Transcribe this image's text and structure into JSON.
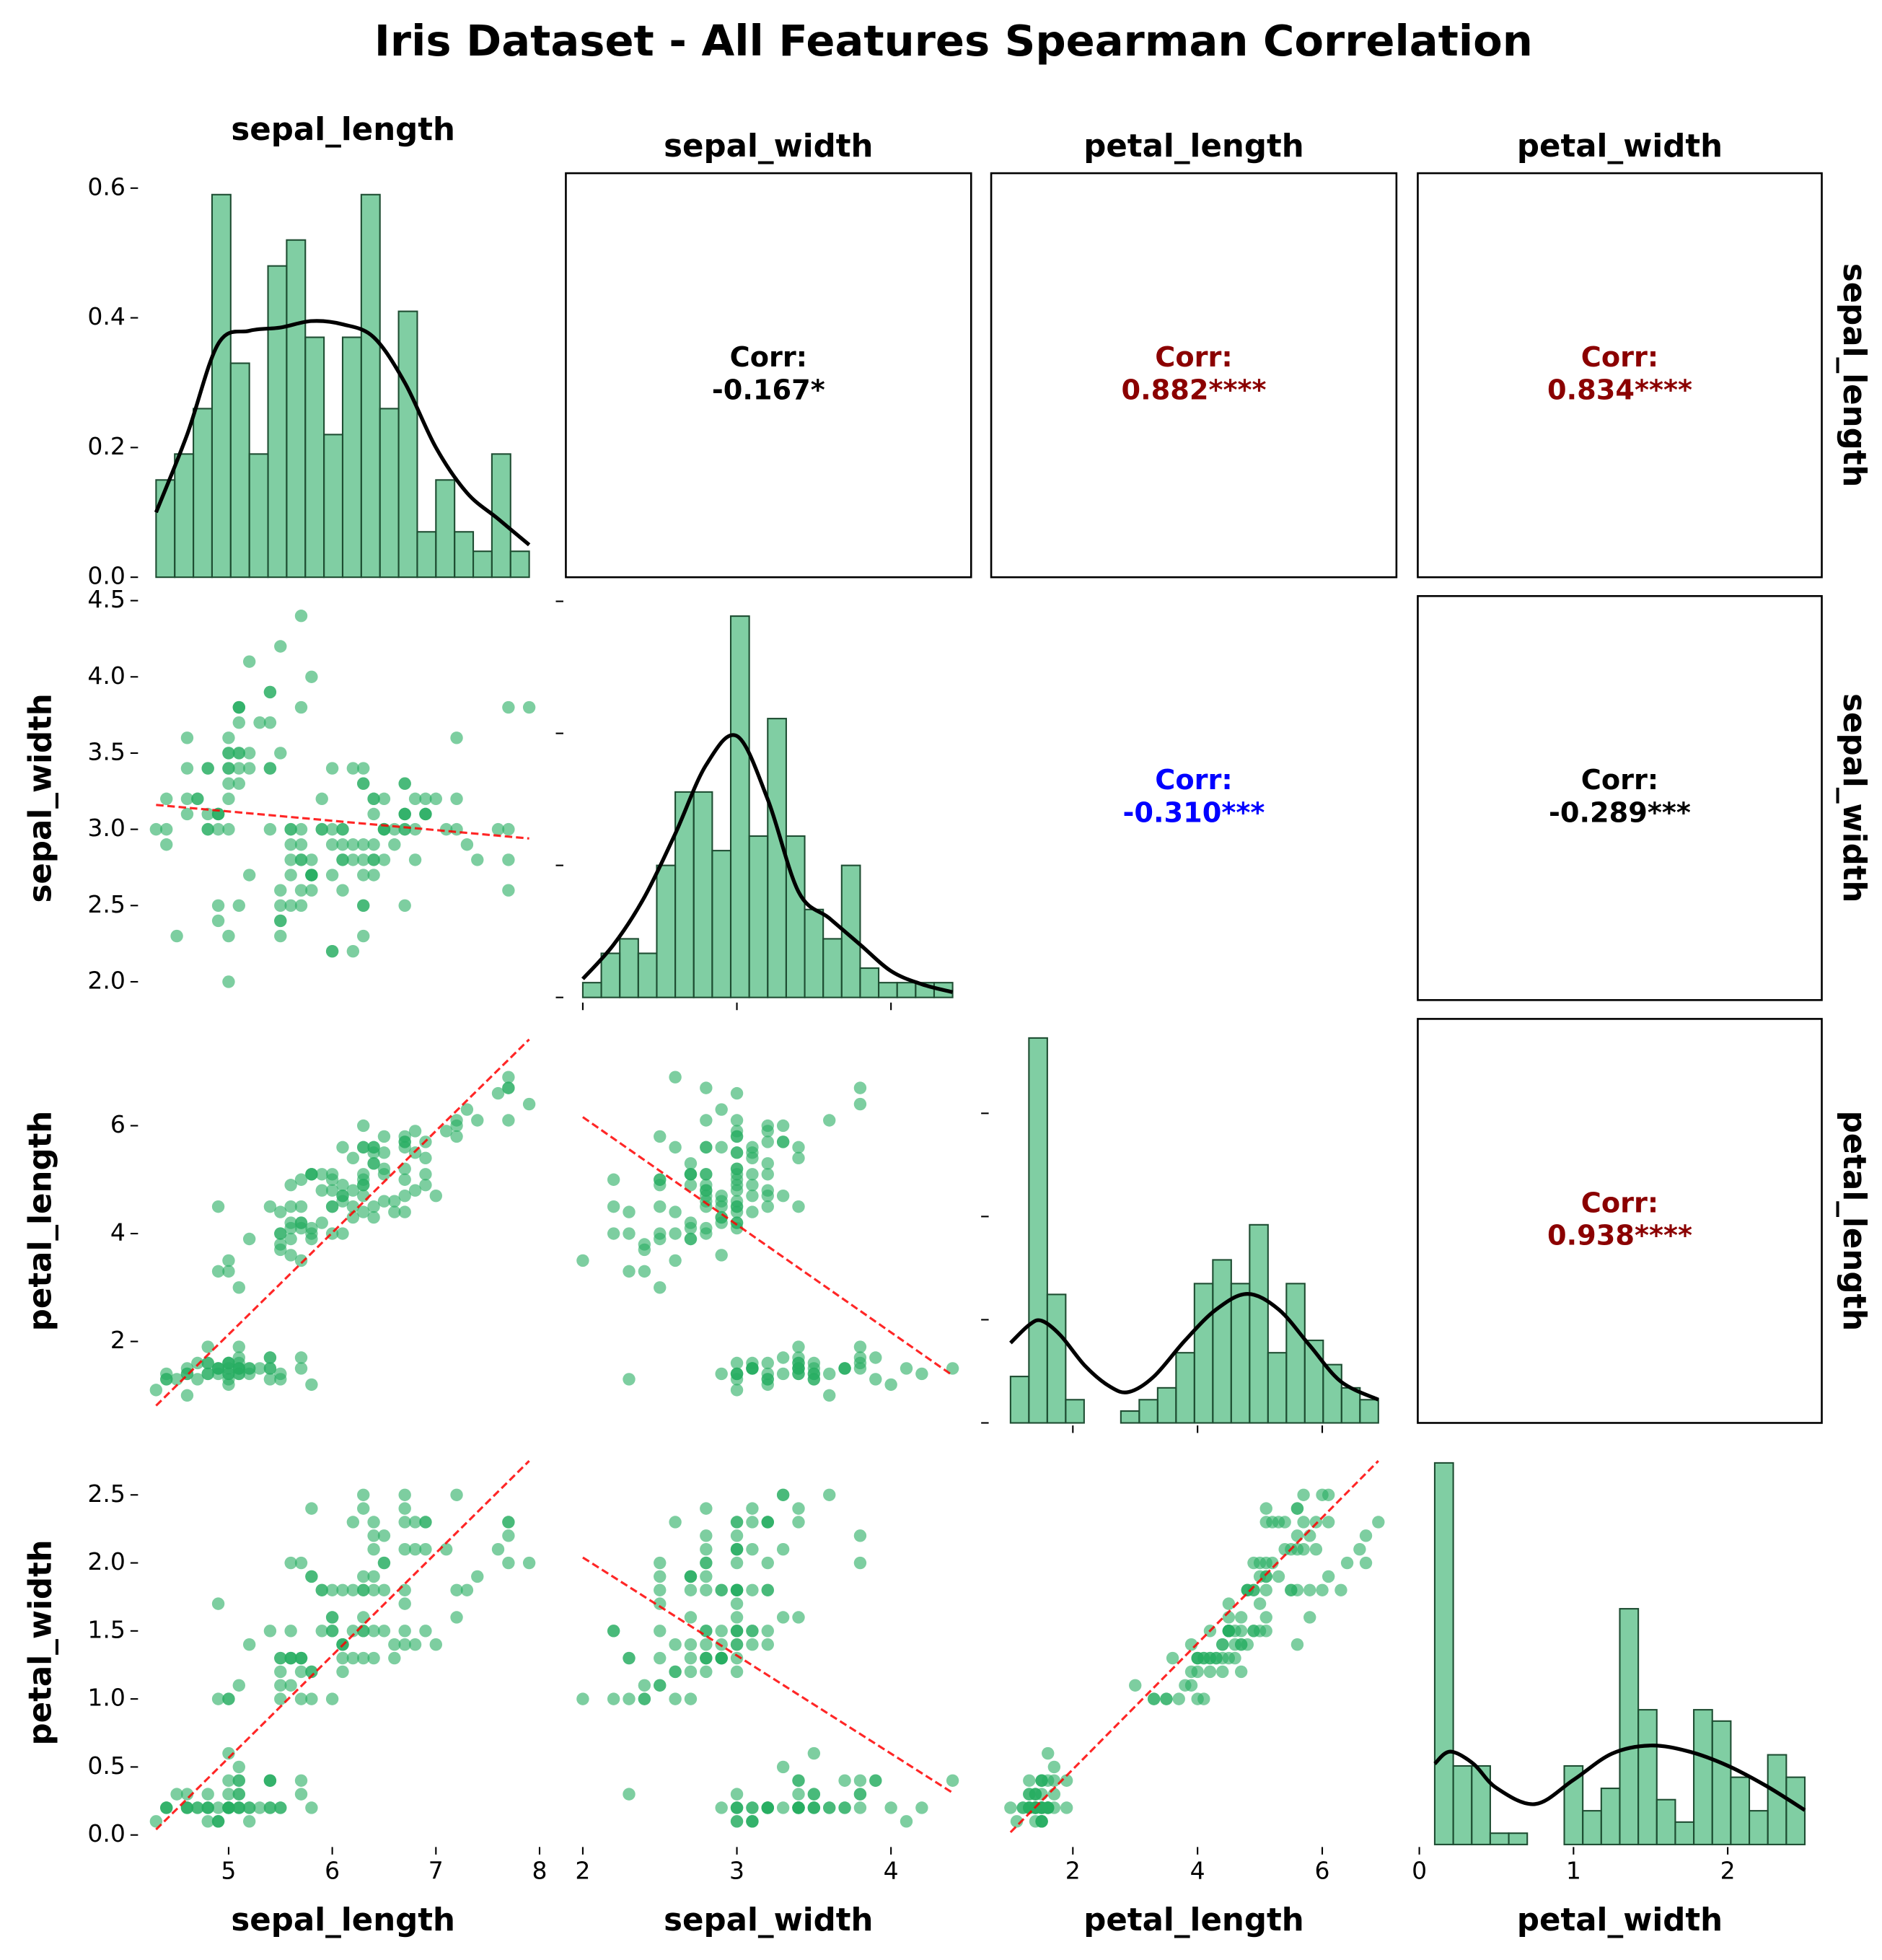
{
  "chart_data": {
    "type": "pairplot",
    "title": "Iris Dataset - All Features Spearman Correlation",
    "variables": [
      "sepal_length",
      "sepal_width",
      "petal_length",
      "petal_width"
    ],
    "columns": [
      [
        5.1,
        4.9,
        4.7,
        4.6,
        5.0,
        5.4,
        4.6,
        5.0,
        4.4,
        4.9,
        5.4,
        4.8,
        4.8,
        4.3,
        5.8,
        5.7,
        5.4,
        5.1,
        5.7,
        5.1,
        5.4,
        5.1,
        4.6,
        5.1,
        4.8,
        5.0,
        5.0,
        5.2,
        5.2,
        4.7,
        4.8,
        5.4,
        5.2,
        5.5,
        4.9,
        5.0,
        5.5,
        4.9,
        4.4,
        5.1,
        5.0,
        4.5,
        4.4,
        5.0,
        5.1,
        4.8,
        5.1,
        4.6,
        5.3,
        5.0,
        7.0,
        6.4,
        6.9,
        5.5,
        6.5,
        5.7,
        6.3,
        4.9,
        6.6,
        5.2,
        5.0,
        5.9,
        6.0,
        6.1,
        5.6,
        6.7,
        5.6,
        5.8,
        6.2,
        5.6,
        5.9,
        6.1,
        6.3,
        6.1,
        6.4,
        6.6,
        6.8,
        6.7,
        6.0,
        5.7,
        5.5,
        5.5,
        5.8,
        6.0,
        5.4,
        6.0,
        6.7,
        6.3,
        5.6,
        5.5,
        5.5,
        6.1,
        5.8,
        5.0,
        5.6,
        5.7,
        5.7,
        6.2,
        5.1,
        5.7,
        6.3,
        5.8,
        7.1,
        6.3,
        6.5,
        7.6,
        4.9,
        7.3,
        6.7,
        7.2,
        6.5,
        6.4,
        6.8,
        5.7,
        5.8,
        6.4,
        6.5,
        7.7,
        7.7,
        6.0,
        6.9,
        5.6,
        7.7,
        6.3,
        6.7,
        7.2,
        6.2,
        6.1,
        6.4,
        7.2,
        7.4,
        7.9,
        6.4,
        6.3,
        6.1,
        7.7,
        6.3,
        6.4,
        6.0,
        6.9,
        6.7,
        6.9,
        5.8,
        6.8,
        6.7,
        6.7,
        6.3,
        6.5,
        6.2,
        5.9
      ],
      [
        3.5,
        3.0,
        3.2,
        3.1,
        3.6,
        3.9,
        3.4,
        3.4,
        2.9,
        3.1,
        3.7,
        3.4,
        3.0,
        3.0,
        4.0,
        4.4,
        3.9,
        3.5,
        3.8,
        3.8,
        3.4,
        3.7,
        3.6,
        3.3,
        3.4,
        3.0,
        3.4,
        3.5,
        3.4,
        3.2,
        3.1,
        3.4,
        4.1,
        4.2,
        3.1,
        3.2,
        3.5,
        3.1,
        3.0,
        3.4,
        3.5,
        2.3,
        3.2,
        3.5,
        3.8,
        3.0,
        3.8,
        3.2,
        3.7,
        3.3,
        3.2,
        3.2,
        3.1,
        2.3,
        2.8,
        2.8,
        3.3,
        2.4,
        2.9,
        2.7,
        2.0,
        3.0,
        2.2,
        2.9,
        2.9,
        3.1,
        3.0,
        2.7,
        2.2,
        2.5,
        3.2,
        2.8,
        2.5,
        2.8,
        2.9,
        3.0,
        2.8,
        3.0,
        2.9,
        2.6,
        2.4,
        2.4,
        2.7,
        2.7,
        3.0,
        3.4,
        3.1,
        2.3,
        3.0,
        2.5,
        2.6,
        3.0,
        2.6,
        2.3,
        2.7,
        3.0,
        2.9,
        2.9,
        2.5,
        2.8,
        3.3,
        2.7,
        3.0,
        2.9,
        3.0,
        3.0,
        2.5,
        2.9,
        2.5,
        3.6,
        3.2,
        2.7,
        3.0,
        2.5,
        2.8,
        3.2,
        3.0,
        3.8,
        2.6,
        2.2,
        3.2,
        2.8,
        2.8,
        2.7,
        3.3,
        3.2,
        2.8,
        3.0,
        2.8,
        3.0,
        2.8,
        3.8,
        2.8,
        2.8,
        2.6,
        3.0,
        3.4,
        3.1,
        3.0,
        3.1,
        3.1,
        3.1,
        2.7,
        3.2,
        3.3,
        3.0,
        2.5,
        3.0,
        3.4,
        3.0
      ],
      [
        1.4,
        1.4,
        1.3,
        1.5,
        1.4,
        1.7,
        1.4,
        1.5,
        1.4,
        1.5,
        1.5,
        1.6,
        1.4,
        1.1,
        1.2,
        1.5,
        1.3,
        1.4,
        1.7,
        1.5,
        1.7,
        1.5,
        1.0,
        1.7,
        1.9,
        1.6,
        1.6,
        1.5,
        1.4,
        1.6,
        1.6,
        1.5,
        1.5,
        1.4,
        1.5,
        1.2,
        1.3,
        1.5,
        1.3,
        1.5,
        1.3,
        1.3,
        1.3,
        1.6,
        1.9,
        1.4,
        1.6,
        1.4,
        1.5,
        1.4,
        4.7,
        4.5,
        4.9,
        4.0,
        4.6,
        4.5,
        4.7,
        3.3,
        4.6,
        3.9,
        3.5,
        4.2,
        4.0,
        4.7,
        3.6,
        4.4,
        4.5,
        4.1,
        4.5,
        3.9,
        4.8,
        4.0,
        4.9,
        4.7,
        4.3,
        4.4,
        4.8,
        5.0,
        4.5,
        3.5,
        3.8,
        3.7,
        3.9,
        5.1,
        4.5,
        4.5,
        4.7,
        4.4,
        4.1,
        4.0,
        4.4,
        4.6,
        4.0,
        3.3,
        4.2,
        4.2,
        4.2,
        4.3,
        3.0,
        4.1,
        6.0,
        5.1,
        5.9,
        5.6,
        5.8,
        6.6,
        4.5,
        6.3,
        5.8,
        6.1,
        5.1,
        5.3,
        5.5,
        5.0,
        5.1,
        5.3,
        5.5,
        6.7,
        6.9,
        5.0,
        5.7,
        4.9,
        6.7,
        4.9,
        5.7,
        6.0,
        4.8,
        4.9,
        5.6,
        5.8,
        6.1,
        6.4,
        5.6,
        5.1,
        5.6,
        6.1,
        5.6,
        5.5,
        4.8,
        5.4,
        5.6,
        5.1,
        5.1,
        5.9,
        5.7,
        5.2,
        5.0,
        5.2,
        5.4,
        5.1
      ],
      [
        0.2,
        0.2,
        0.2,
        0.2,
        0.2,
        0.4,
        0.3,
        0.2,
        0.2,
        0.1,
        0.2,
        0.2,
        0.1,
        0.1,
        0.2,
        0.4,
        0.4,
        0.3,
        0.3,
        0.3,
        0.2,
        0.4,
        0.2,
        0.5,
        0.2,
        0.2,
        0.4,
        0.2,
        0.2,
        0.2,
        0.2,
        0.4,
        0.1,
        0.2,
        0.1,
        0.2,
        0.2,
        0.1,
        0.2,
        0.2,
        0.3,
        0.3,
        0.2,
        0.6,
        0.4,
        0.3,
        0.2,
        0.2,
        0.2,
        0.2,
        1.4,
        1.5,
        1.5,
        1.3,
        1.5,
        1.3,
        1.6,
        1.0,
        1.3,
        1.4,
        1.0,
        1.5,
        1.0,
        1.4,
        1.3,
        1.4,
        1.5,
        1.0,
        1.5,
        1.1,
        1.8,
        1.3,
        1.5,
        1.2,
        1.3,
        1.4,
        1.4,
        1.7,
        1.5,
        1.0,
        1.1,
        1.0,
        1.2,
        1.6,
        1.5,
        1.6,
        1.5,
        1.3,
        1.3,
        1.3,
        1.2,
        1.4,
        1.2,
        1.0,
        1.3,
        1.2,
        1.3,
        1.3,
        1.1,
        1.3,
        2.5,
        1.9,
        2.1,
        1.8,
        2.2,
        2.1,
        1.7,
        1.8,
        1.8,
        2.5,
        2.0,
        1.9,
        2.1,
        2.0,
        2.4,
        2.3,
        1.8,
        2.2,
        2.3,
        1.5,
        2.3,
        2.0,
        2.0,
        1.8,
        2.1,
        1.8,
        1.8,
        1.8,
        2.1,
        1.6,
        1.9,
        2.0,
        2.2,
        1.5,
        1.4,
        2.3,
        2.4,
        1.8,
        1.8,
        2.1,
        2.4,
        2.3,
        1.9,
        2.3,
        2.5,
        2.3,
        1.9,
        2.0,
        2.3,
        1.8
      ]
    ],
    "axes": [
      {
        "xlim": [
          4.15,
          8.06
        ],
        "xticks": [
          5,
          6,
          7,
          8
        ]
      },
      {
        "xlim": [
          1.89,
          4.52
        ],
        "xticks": [
          2,
          3,
          4
        ],
        "ylim": [
          1.88,
          4.53
        ],
        "yticks": [
          {
            "value": 2,
            "label": "2.0"
          },
          2.5,
          {
            "value": 3,
            "label": "3.0"
          },
          3.5,
          {
            "value": 4,
            "label": "4.0"
          },
          4.5
        ]
      },
      {
        "xlim": [
          0.69,
          7.19
        ],
        "xticks": [
          2,
          4,
          6
        ],
        "ylim": [
          0.49,
          7.98
        ],
        "yticks": [
          2,
          4,
          6
        ]
      },
      {
        "xlim": [
          -0.01,
          2.61
        ],
        "xticks": [
          0,
          1,
          2
        ],
        "ylim": [
          -0.07,
          2.9
        ],
        "yticks": [
          {
            "value": 0,
            "label": "0.0"
          },
          0.5,
          {
            "value": 1,
            "label": "1.0"
          },
          1.5,
          {
            "value": 2,
            "label": "2.0"
          },
          2.5
        ]
      }
    ],
    "histograms": [
      {
        "bins": [
          4.3,
          4.48,
          4.66,
          4.84,
          5.02,
          5.2,
          5.38,
          5.56,
          5.74,
          5.92,
          6.1,
          6.28,
          6.46,
          6.64,
          6.82,
          7.0,
          7.18,
          7.36,
          7.54,
          7.72,
          7.9
        ],
        "values": [
          0.15,
          0.19,
          0.26,
          0.59,
          0.33,
          0.19,
          0.48,
          0.52,
          0.37,
          0.22,
          0.37,
          0.59,
          0.26,
          0.41,
          0.07,
          0.15,
          0.07,
          0.04,
          0.19,
          0.04
        ],
        "ylim": [
          0,
          0.623
        ],
        "yticks": [
          {
            "value": 0,
            "label": "0.0"
          },
          0.2,
          0.4,
          0.6
        ],
        "kde": {
          "x": [
            4.3,
            4.6,
            4.9,
            5.2,
            5.5,
            5.8,
            6.1,
            6.4,
            6.7,
            7.0,
            7.3,
            7.6,
            7.9
          ],
          "y": [
            0.1,
            0.22,
            0.36,
            0.38,
            0.385,
            0.395,
            0.39,
            0.37,
            0.3,
            0.2,
            0.13,
            0.09,
            0.05
          ]
        }
      },
      {
        "bins": [
          2.0,
          2.12,
          2.24,
          2.36,
          2.48,
          2.6,
          2.72,
          2.84,
          2.96,
          3.08,
          3.2,
          3.32,
          3.44,
          3.56,
          3.68,
          3.8,
          3.92,
          4.04,
          4.16,
          4.28,
          4.4
        ],
        "values": [
          0.056,
          0.167,
          0.222,
          0.167,
          0.5,
          0.778,
          0.778,
          0.556,
          1.444,
          0.611,
          1.056,
          0.611,
          0.333,
          0.222,
          0.5,
          0.111,
          0.056,
          0.056,
          0.056,
          0.056
        ],
        "ylim": [
          -0.01,
          1.52
        ],
        "yticks": [
          0,
          0.5,
          1,
          1.5
        ],
        "kde": {
          "x": [
            2.0,
            2.2,
            2.4,
            2.6,
            2.8,
            3.0,
            3.2,
            3.4,
            3.6,
            3.8,
            4.0,
            4.2,
            4.4
          ],
          "y": [
            0.07,
            0.2,
            0.38,
            0.62,
            0.88,
            0.99,
            0.75,
            0.4,
            0.3,
            0.2,
            0.1,
            0.05,
            0.02
          ]
        }
      },
      {
        "bins": [
          1.0,
          1.295,
          1.59,
          1.885,
          2.18,
          2.475,
          2.77,
          3.065,
          3.36,
          3.655,
          3.95,
          4.245,
          4.54,
          4.835,
          5.13,
          5.425,
          5.72,
          6.015,
          6.31,
          6.605,
          6.9
        ],
        "values": [
          0.09,
          0.746,
          0.249,
          0.045,
          0,
          0,
          0.023,
          0.045,
          0.068,
          0.136,
          0.27,
          0.316,
          0.27,
          0.384,
          0.136,
          0.27,
          0.16,
          0.113,
          0.068,
          0.045
        ],
        "ylim": [
          0,
          0.783
        ],
        "yticks": [
          0,
          0.2,
          0.4,
          0.6
        ],
        "kde": {
          "x": [
            1.0,
            1.3,
            1.5,
            1.8,
            2.2,
            2.6,
            2.9,
            3.3,
            3.8,
            4.3,
            4.8,
            5.3,
            5.8,
            6.3,
            6.9
          ],
          "y": [
            0.155,
            0.19,
            0.198,
            0.17,
            0.11,
            0.07,
            0.06,
            0.09,
            0.16,
            0.22,
            0.25,
            0.22,
            0.15,
            0.08,
            0.045
          ]
        }
      },
      {
        "bins": [
          0.1,
          0.22,
          0.34,
          0.46,
          0.58,
          0.7,
          0.82,
          0.94,
          1.06,
          1.18,
          1.3,
          1.42,
          1.54,
          1.66,
          1.78,
          1.9,
          2.02,
          2.14,
          2.26,
          2.38,
          2.5
        ],
        "values": [
          1.889,
          0.389,
          0.389,
          0.056,
          0.056,
          0,
          0,
          0.389,
          0.167,
          0.278,
          1.167,
          0.667,
          0.222,
          0.111,
          0.667,
          0.611,
          0.333,
          0.167,
          0.444,
          0.333
        ],
        "ylim": [
          0,
          2.0
        ],
        "kde": {
          "x": [
            0.1,
            0.2,
            0.35,
            0.5,
            0.75,
            1.0,
            1.25,
            1.5,
            1.75,
            2.0,
            2.25,
            2.5
          ],
          "y": [
            0.4,
            0.46,
            0.4,
            0.28,
            0.2,
            0.32,
            0.45,
            0.49,
            0.46,
            0.39,
            0.29,
            0.17
          ]
        }
      }
    ],
    "fits": [
      {
        "x_var": "sepal_length",
        "y_var": "sepal_width",
        "x": [
          4.3,
          7.9
        ],
        "y": [
          3.16,
          2.94
        ]
      },
      {
        "x_var": "sepal_length",
        "y_var": "petal_length",
        "x": [
          4.3,
          7.9
        ],
        "y": [
          0.81,
          7.6
        ]
      },
      {
        "x_var": "sepal_width",
        "y_var": "petal_length",
        "x": [
          2.0,
          4.4
        ],
        "y": [
          6.16,
          1.37
        ]
      },
      {
        "x_var": "sepal_length",
        "y_var": "petal_width",
        "x": [
          4.3,
          7.9
        ],
        "y": [
          0.04,
          2.75
        ]
      },
      {
        "x_var": "sepal_width",
        "y_var": "petal_width",
        "x": [
          2.0,
          4.4
        ],
        "y": [
          2.04,
          0.31
        ]
      },
      {
        "x_var": "petal_length",
        "y_var": "petal_width",
        "x": [
          1.0,
          6.9
        ],
        "y": [
          0.02,
          2.75
        ]
      }
    ],
    "correlation_prefix": "Corr:",
    "correlations": [
      {
        "x_var": "sepal_width",
        "y_var": "sepal_length",
        "value": -0.167,
        "value_label": "-0.167*",
        "color": "#000000",
        "frame": true
      },
      {
        "x_var": "petal_length",
        "y_var": "sepal_length",
        "value": 0.882,
        "value_label": "0.882****",
        "color": "#8b0000",
        "frame": true
      },
      {
        "x_var": "petal_width",
        "y_var": "sepal_length",
        "value": 0.834,
        "value_label": "0.834****",
        "color": "#8b0000",
        "frame": true
      },
      {
        "x_var": "petal_length",
        "y_var": "sepal_width",
        "value": -0.31,
        "value_label": "-0.310***",
        "color": "#0000ff",
        "frame": false
      },
      {
        "x_var": "petal_width",
        "y_var": "sepal_width",
        "value": -0.289,
        "value_label": "-0.289***",
        "color": "#000000",
        "frame": true
      },
      {
        "x_var": "petal_width",
        "y_var": "petal_length",
        "value": 0.938,
        "value_label": "0.938****",
        "color": "#8b0000",
        "frame": true
      }
    ],
    "bar_color": "#3cb371",
    "point_color": "#27ae60",
    "kde_color": "#000000",
    "fit_color": "#ff0000"
  }
}
